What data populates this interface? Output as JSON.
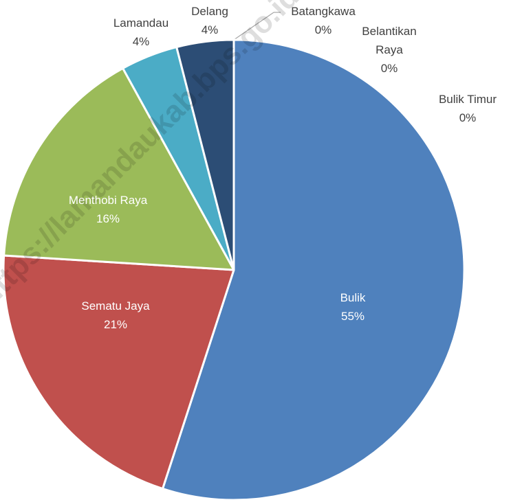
{
  "chart_data": {
    "type": "pie",
    "categories": [
      "Bulik",
      "Sematu Jaya",
      "Menthobi Raya",
      "Lamandau",
      "Delang",
      "Batangkawa",
      "Belantikan Raya",
      "Bulik Timur"
    ],
    "values": [
      55,
      21,
      16,
      4,
      4,
      0,
      0,
      0
    ],
    "value_labels": [
      "55%",
      "21%",
      "16%",
      "4%",
      "4%",
      "0%",
      "0%",
      "0%"
    ],
    "colors": [
      "#4f81bd",
      "#c0504d",
      "#9bbb59",
      "#4bacc6",
      "#2c4d75",
      "#f79646",
      "#8064a2",
      "#7f7f7f"
    ],
    "watermark": "https://lamandaukab.bps.go.id"
  }
}
